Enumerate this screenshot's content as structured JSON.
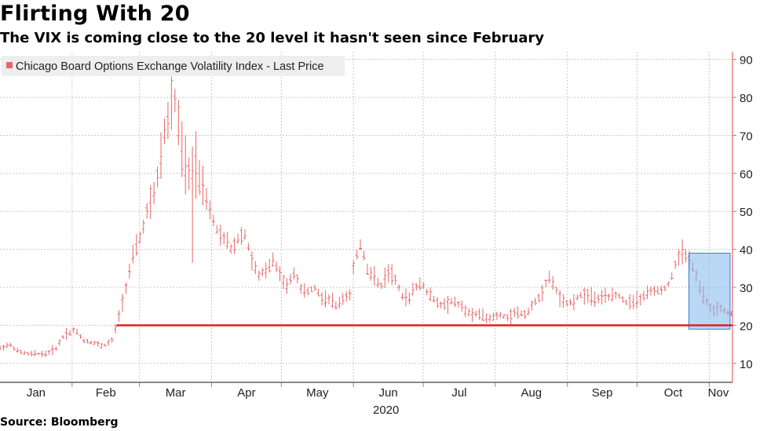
{
  "title": "Flirting With 20",
  "subtitle": "The VIX is coming close to the 20 level it hasn't seen since February",
  "source": "Source: Bloomberg",
  "colors": {
    "series": "#e86666",
    "reference_line": "#e0231f",
    "highlight_fill": "#7fb8ef",
    "highlight_stroke": "#3a7dd0",
    "axis": "#e86666",
    "grid": "#c8c8c8",
    "legend_bg": "#eeeeee"
  },
  "chart_data": {
    "type": "line",
    "subtype": "ohlc",
    "legend": [
      "Chicago Board Options Exchange Volatility Index - Last Price"
    ],
    "xlabel": "2020",
    "ylabel": "",
    "ylim": [
      5,
      92
    ],
    "y_ticks": [
      10,
      20,
      30,
      40,
      50,
      60,
      70,
      80,
      90
    ],
    "y_axis_side": "right",
    "grid": true,
    "x_tick_labels": [
      "Jan",
      "Feb",
      "Mar",
      "Apr",
      "May",
      "Jun",
      "Jul",
      "Aug",
      "Sep",
      "Oct",
      "Nov"
    ],
    "x_range_days": [
      0,
      314
    ],
    "reference_line": {
      "y": 20,
      "x_start_day": 50
    },
    "highlight": {
      "x_start_day": 296,
      "x_end_day": 314,
      "y_low": 19,
      "y_high": 39
    },
    "anchor_points": [
      [
        0,
        14
      ],
      [
        4,
        15
      ],
      [
        8,
        13
      ],
      [
        12,
        12.5
      ],
      [
        16,
        12.5
      ],
      [
        20,
        12.5
      ],
      [
        24,
        14
      ],
      [
        28,
        18
      ],
      [
        30,
        18
      ],
      [
        32,
        19
      ],
      [
        36,
        16
      ],
      [
        40,
        15.5
      ],
      [
        44,
        14.5
      ],
      [
        48,
        16
      ],
      [
        50,
        20
      ],
      [
        52,
        25
      ],
      [
        55,
        33
      ],
      [
        57,
        38
      ],
      [
        60,
        43
      ],
      [
        64,
        52
      ],
      [
        67,
        57
      ],
      [
        70,
        70
      ],
      [
        72,
        75
      ],
      [
        74,
        82
      ],
      [
        76,
        76
      ],
      [
        78,
        65
      ],
      [
        80,
        60
      ],
      [
        83,
        62
      ],
      [
        86,
        58
      ],
      [
        88,
        55
      ],
      [
        90,
        50
      ],
      [
        93,
        45
      ],
      [
        96,
        43
      ],
      [
        99,
        40
      ],
      [
        102,
        43
      ],
      [
        105,
        44
      ],
      [
        108,
        37
      ],
      [
        111,
        33
      ],
      [
        114,
        35
      ],
      [
        117,
        37
      ],
      [
        120,
        33
      ],
      [
        123,
        30
      ],
      [
        126,
        34
      ],
      [
        129,
        30
      ],
      [
        132,
        29
      ],
      [
        135,
        30
      ],
      [
        138,
        27
      ],
      [
        141,
        27
      ],
      [
        144,
        25
      ],
      [
        147,
        27
      ],
      [
        150,
        28
      ],
      [
        152,
        37
      ],
      [
        155,
        42
      ],
      [
        157,
        35
      ],
      [
        160,
        33
      ],
      [
        163,
        30
      ],
      [
        166,
        34
      ],
      [
        169,
        33
      ],
      [
        172,
        28
      ],
      [
        175,
        27
      ],
      [
        178,
        30
      ],
      [
        181,
        31
      ],
      [
        184,
        28
      ],
      [
        187,
        26
      ],
      [
        190,
        25
      ],
      [
        193,
        26
      ],
      [
        196,
        26
      ],
      [
        199,
        24
      ],
      [
        202,
        23
      ],
      [
        205,
        23
      ],
      [
        208,
        22
      ],
      [
        211,
        22
      ],
      [
        214,
        23
      ],
      [
        217,
        22
      ],
      [
        220,
        23
      ],
      [
        223,
        23
      ],
      [
        226,
        23
      ],
      [
        229,
        26
      ],
      [
        232,
        28
      ],
      [
        235,
        33
      ],
      [
        238,
        30
      ],
      [
        241,
        26
      ],
      [
        244,
        26
      ],
      [
        247,
        27
      ],
      [
        250,
        28
      ],
      [
        253,
        28
      ],
      [
        256,
        27
      ],
      [
        259,
        27
      ],
      [
        262,
        28
      ],
      [
        265,
        28
      ],
      [
        268,
        26
      ],
      [
        271,
        26
      ],
      [
        274,
        27
      ],
      [
        277,
        28
      ],
      [
        280,
        29
      ],
      [
        283,
        29
      ],
      [
        286,
        30
      ],
      [
        288,
        33
      ],
      [
        290,
        37
      ],
      [
        292,
        40
      ],
      [
        294,
        38
      ],
      [
        296,
        37
      ],
      [
        298,
        34
      ],
      [
        300,
        30
      ],
      [
        302,
        27
      ],
      [
        304,
        25
      ],
      [
        306,
        24
      ],
      [
        308,
        25
      ],
      [
        310,
        24
      ],
      [
        312,
        23
      ],
      [
        314,
        23
      ]
    ],
    "notable_extremes": {
      "max": 85.5,
      "max_month": "Mar",
      "min": 12,
      "min_month": "Jan"
    }
  }
}
